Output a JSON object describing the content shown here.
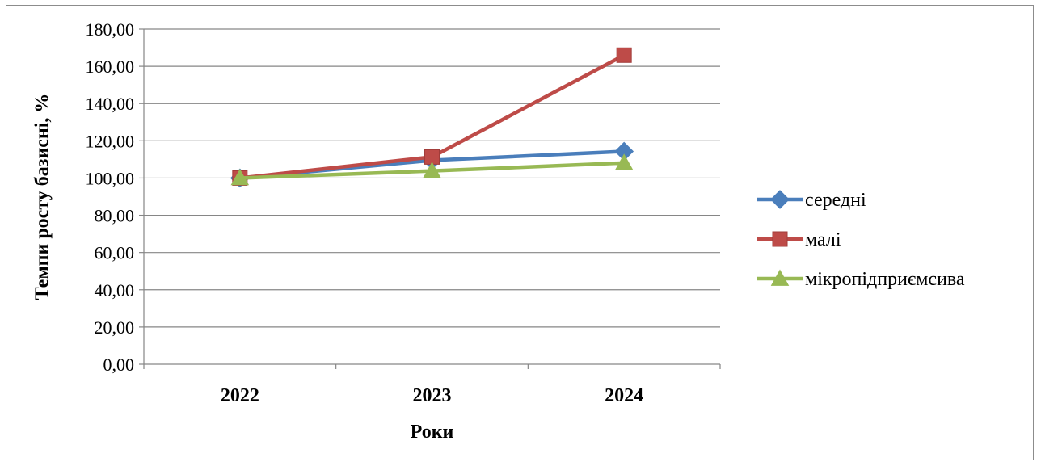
{
  "chart_data": {
    "type": "line",
    "categories": [
      "2022",
      "2023",
      "2024"
    ],
    "series": [
      {
        "name": "середні",
        "values": [
          100.0,
          109.5,
          114.3
        ],
        "color": "#4a7ebb",
        "marker": "diamond"
      },
      {
        "name": "малі",
        "values": [
          100.0,
          111.3,
          166.0
        ],
        "color": "#be4b48",
        "marker": "square"
      },
      {
        "name": "мікропідприємсива",
        "values": [
          100.0,
          103.8,
          108.1
        ],
        "color": "#98b954",
        "marker": "triangle"
      }
    ],
    "xlabel": "Роки",
    "ylabel": "Темпи росту базисні, %",
    "ylim": [
      0,
      180
    ],
    "ytick_step": 20,
    "ytick_labels": [
      "0,00",
      "20,00",
      "40,00",
      "60,00",
      "80,00",
      "100,00",
      "120,00",
      "140,00",
      "160,00",
      "180,00"
    ],
    "grid": true,
    "legend_position": "right"
  }
}
